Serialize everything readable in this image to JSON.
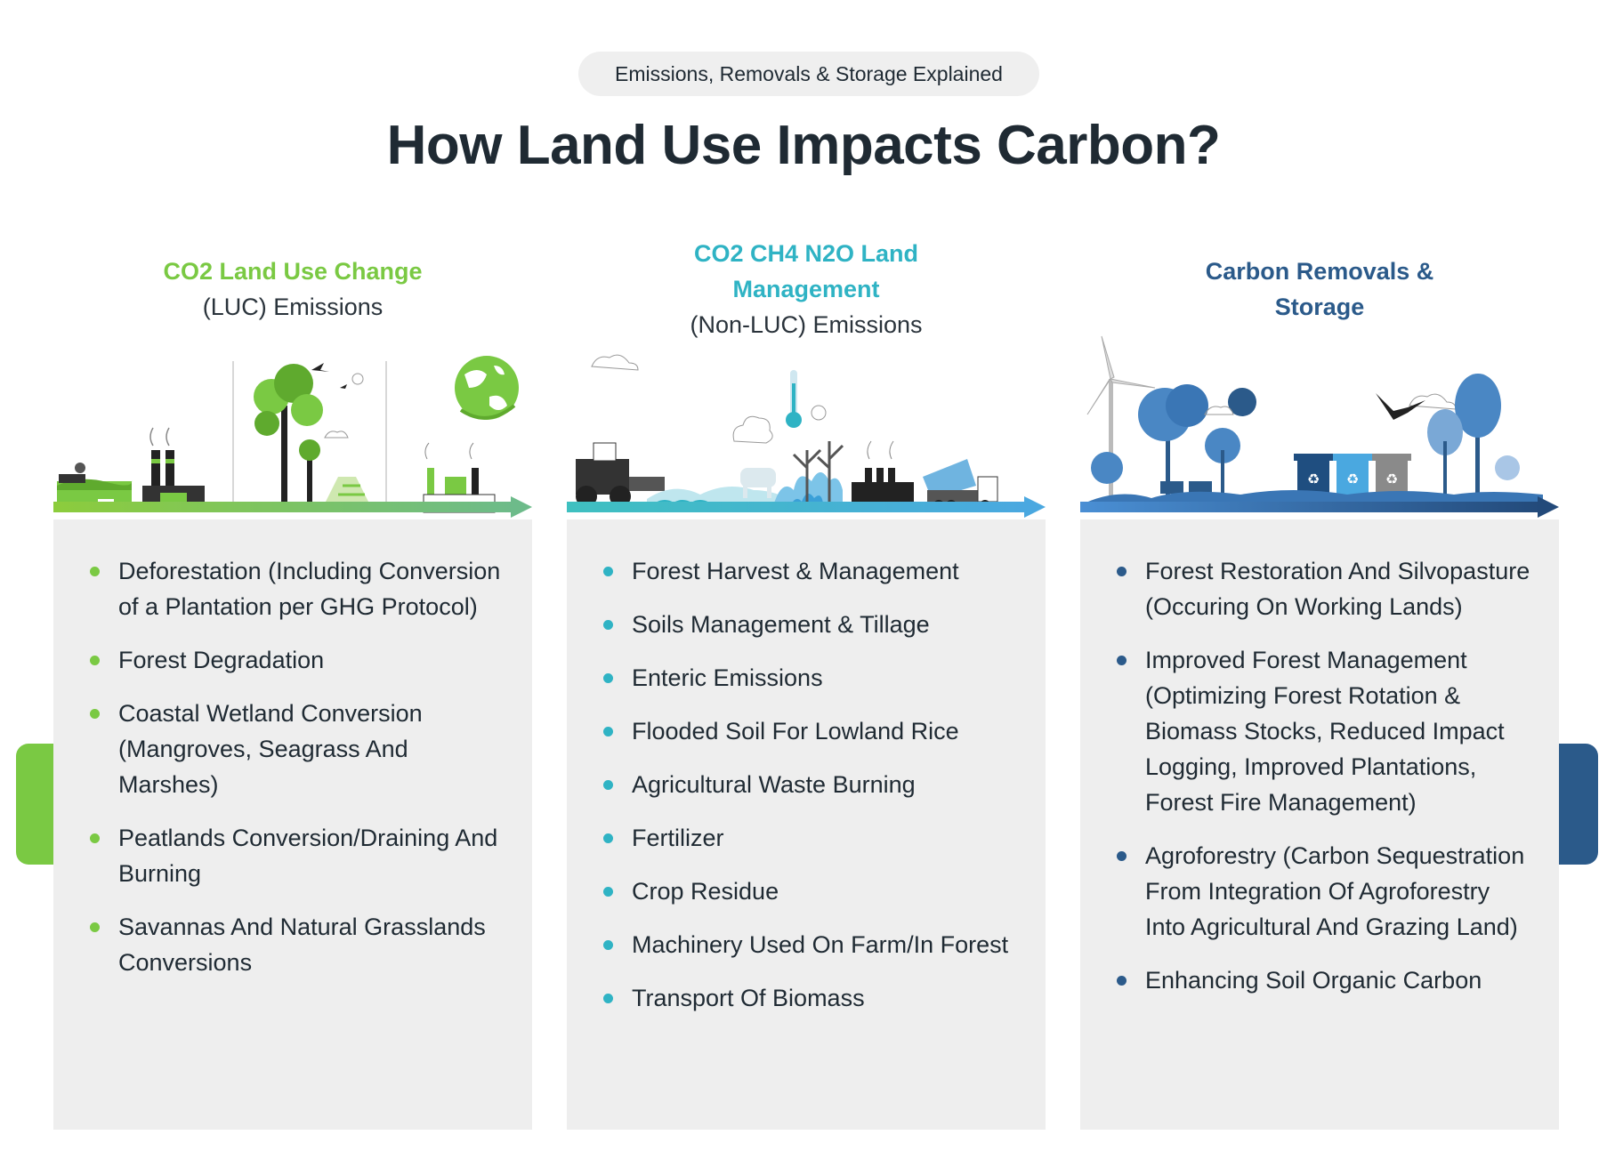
{
  "header": {
    "pill": "Emissions, Removals & Storage Explained",
    "title": "How Land Use Impacts Carbon?"
  },
  "colors": {
    "green": "#7ac943",
    "teal": "#2fb3c4",
    "navy": "#2b5a8a",
    "panel": "#eeeeee",
    "text": "#1f2a33"
  },
  "columns": [
    {
      "heading_strong": "CO2 Land Use Change",
      "heading_sub": "(LUC) Emissions",
      "illustration_icons": [
        "factory-icon",
        "tree-icon",
        "earth-globe-icon",
        "field-icon"
      ],
      "items": [
        "Deforestation (Including Conversion of a Plantation per GHG Protocol)",
        "Forest Degradation",
        "Coastal Wetland Conversion (Mangroves, Seagrass And Marshes)",
        "Peatlands Conversion/Draining And Burning",
        "Savannas And Natural Grasslands Conversions"
      ]
    },
    {
      "heading_strong": "CO2 CH4 N2O Land Management",
      "heading_sub": "(Non-LUC) Emissions",
      "illustration_icons": [
        "tractor-icon",
        "thermometer-icon",
        "fire-icon",
        "factory-icon",
        "truck-icon"
      ],
      "items": [
        "Forest Harvest & Management",
        "Soils Management & Tillage",
        "Enteric Emissions",
        "Flooded Soil For Lowland Rice",
        "Agricultural Waste Burning",
        "Fertilizer",
        "Crop Residue",
        "Machinery Used On Farm/In Forest",
        "Transport Of Biomass"
      ]
    },
    {
      "heading_strong": "Carbon Removals & Storage",
      "heading_sub": "",
      "illustration_icons": [
        "wind-turbine-icon",
        "tree-icon",
        "recycle-bin-icon",
        "eagle-icon",
        "sun-icon"
      ],
      "items": [
        "Forest Restoration And Silvopasture (Occuring On Working Lands)",
        "Improved Forest Management (Optimizing Forest Rotation & Biomass Stocks, Reduced Impact Logging, Improved Plantations, Forest Fire Management)",
        "Agroforestry (Carbon Sequestration From Integration Of Agroforestry Into Agricultural And Grazing Land)",
        "Enhancing Soil Organic Carbon"
      ]
    }
  ]
}
